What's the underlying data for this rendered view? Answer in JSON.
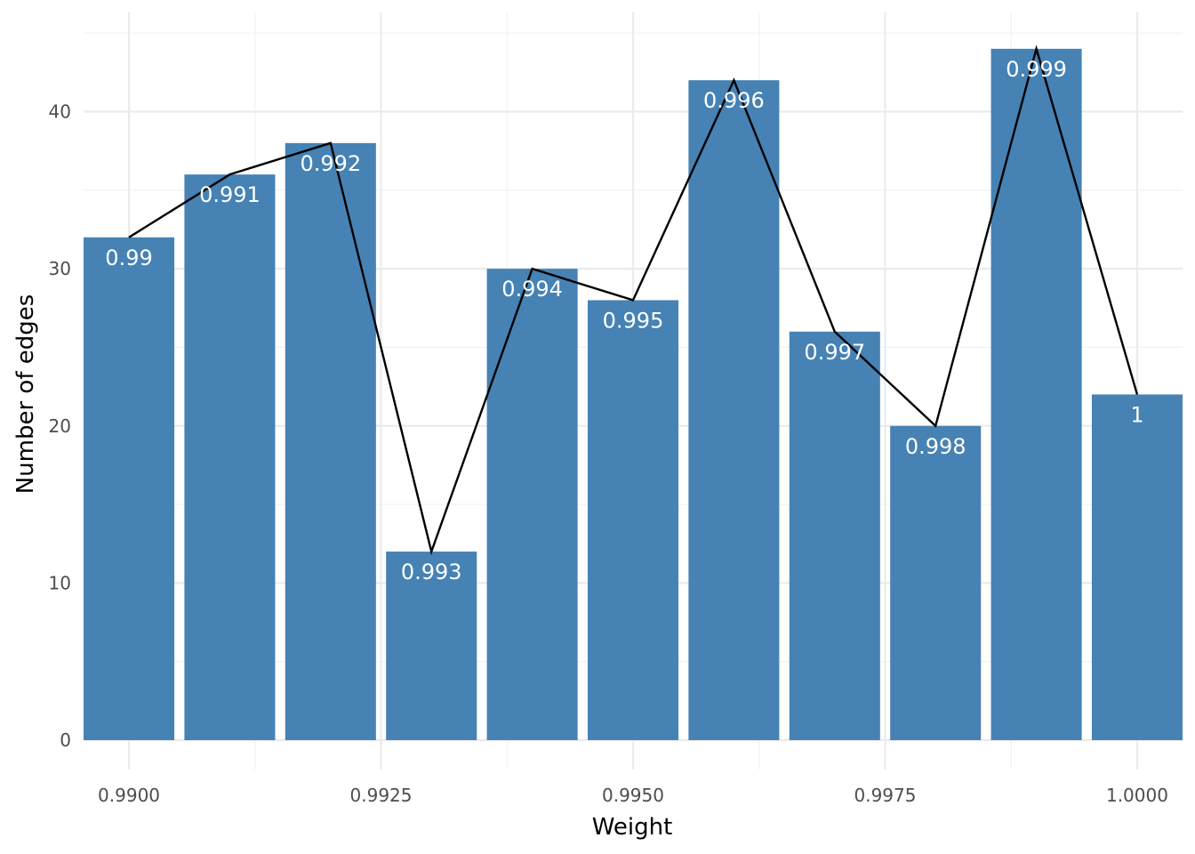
{
  "chart_data": {
    "type": "bar",
    "xlabel": "Weight",
    "ylabel": "Number of edges",
    "xlim": [
      0.98955,
      1.00045
    ],
    "ylim": [
      0,
      46.2
    ],
    "grid": true,
    "legend": "none",
    "bar_color": "#4682b4",
    "line_color": "#000000",
    "bar_label_color": "#ffffff",
    "x_ticks": [
      0.99,
      0.9925,
      0.995,
      0.9975,
      1.0
    ],
    "x_tick_labels": [
      "0.9900",
      "0.9925",
      "0.9950",
      "0.9975",
      "1.0000"
    ],
    "y_ticks": [
      0,
      10,
      20,
      30,
      40
    ],
    "y_tick_labels": [
      "0",
      "10",
      "20",
      "30",
      "40"
    ],
    "x": [
      0.99,
      0.991,
      0.992,
      0.993,
      0.994,
      0.995,
      0.996,
      0.997,
      0.998,
      0.999,
      1.0
    ],
    "values": [
      32,
      36,
      38,
      12,
      30,
      28,
      42,
      26,
      20,
      44,
      22
    ],
    "bar_labels": [
      "0.99",
      "0.991",
      "0.992",
      "0.993",
      "0.994",
      "0.995",
      "0.996",
      "0.997",
      "0.998",
      "0.999",
      "1"
    ],
    "bar_width": 0.0009
  }
}
